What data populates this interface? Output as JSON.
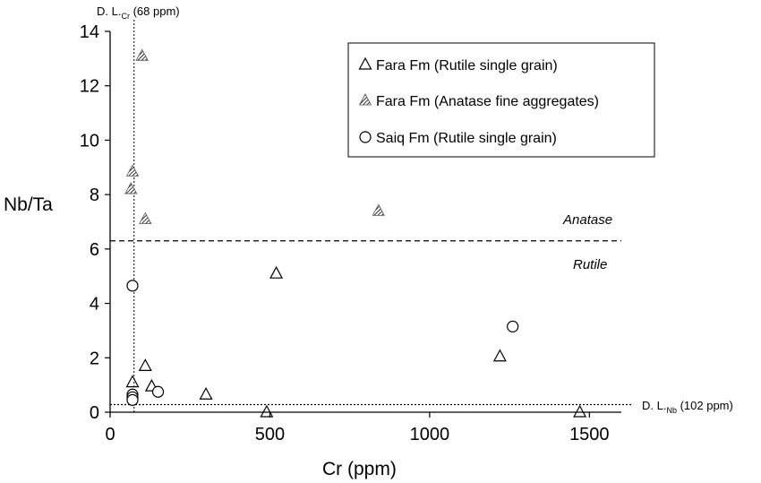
{
  "chart_data": {
    "type": "scatter",
    "xlabel": "Cr (ppm)",
    "ylabel": "Nb/Ta",
    "xlim": [
      0,
      1600
    ],
    "ylim": [
      0,
      14
    ],
    "x_ticks": [
      0,
      500,
      1000,
      1500
    ],
    "y_ticks": [
      0,
      2,
      4,
      6,
      8,
      10,
      12,
      14
    ],
    "grid": false,
    "legend_position": "top-right",
    "series": [
      {
        "name": "Fara Fm (Rutile single grain)",
        "marker": "open-triangle",
        "points": [
          {
            "x": 70,
            "y": 1.1
          },
          {
            "x": 110,
            "y": 1.7
          },
          {
            "x": 130,
            "y": 0.95
          },
          {
            "x": 300,
            "y": 0.65
          },
          {
            "x": 490,
            "y": 0.0
          },
          {
            "x": 520,
            "y": 5.1
          },
          {
            "x": 1220,
            "y": 2.05
          },
          {
            "x": 1470,
            "y": 0.0
          }
        ]
      },
      {
        "name": "Fara Fm (Anatase fine aggregates)",
        "marker": "hatched-triangle",
        "points": [
          {
            "x": 70,
            "y": 8.85
          },
          {
            "x": 65,
            "y": 8.2
          },
          {
            "x": 100,
            "y": 13.1
          },
          {
            "x": 110,
            "y": 7.1
          },
          {
            "x": 840,
            "y": 7.4
          }
        ]
      },
      {
        "name": "Saiq Fm (Rutile single grain)",
        "marker": "open-circle",
        "points": [
          {
            "x": 70,
            "y": 4.65
          },
          {
            "x": 70,
            "y": 0.65
          },
          {
            "x": 70,
            "y": 0.55
          },
          {
            "x": 70,
            "y": 0.45
          },
          {
            "x": 150,
            "y": 0.75
          },
          {
            "x": 1260,
            "y": 3.15
          }
        ]
      }
    ],
    "reference_lines": {
      "horizontal": [
        {
          "y": 6.3,
          "style": "dashed"
        },
        {
          "y": 0.28,
          "style": "dotted"
        }
      ],
      "vertical": [
        {
          "x": 75,
          "style": "dotted"
        }
      ]
    },
    "annotations": {
      "anatase": "Anatase",
      "rutile": "Rutile",
      "dl_cr_main": "D. L.",
      "dl_cr_sub": "Cr",
      "dl_cr_value": " (68 ppm)",
      "dl_nb_main": "D. L.",
      "dl_nb_sub": "Nb",
      "dl_nb_value": " (102 ppm)"
    }
  }
}
